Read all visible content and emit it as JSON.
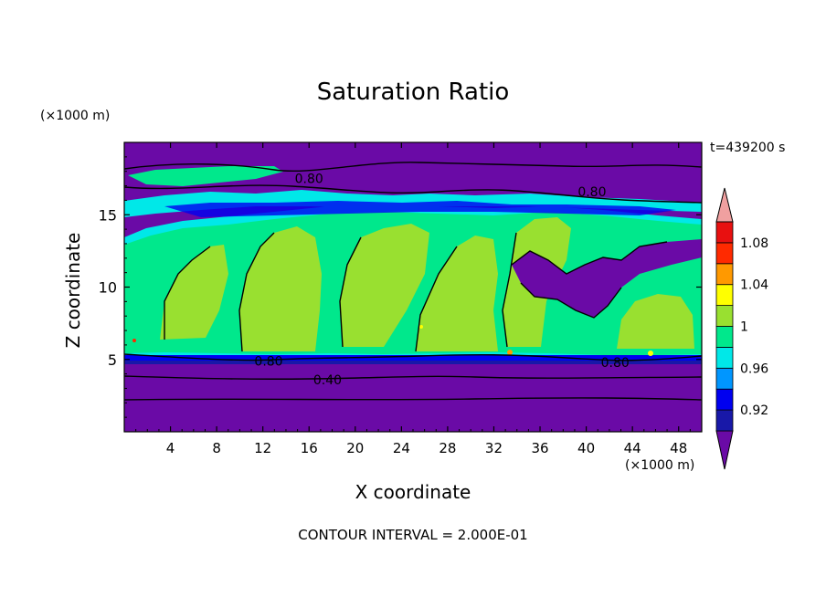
{
  "chart_data": {
    "type": "heatmap",
    "title": "Saturation Ratio",
    "xlabel": "X coordinate",
    "ylabel": "Z coordinate",
    "x_unit": "(×1000 m)",
    "y_unit": "(×1000 m)",
    "time_label": "t=439200 s",
    "footer": "CONTOUR INTERVAL = 2.000E-01",
    "xlim": [
      0,
      50
    ],
    "ylim": [
      0,
      20
    ],
    "x_ticks": [
      4,
      8,
      12,
      16,
      20,
      24,
      28,
      32,
      36,
      40,
      44,
      48
    ],
    "y_ticks": [
      5,
      10,
      15
    ],
    "colorbar": {
      "levels": [
        0.92,
        0.96,
        1,
        1.04,
        1.08
      ],
      "colors": [
        "#6a0aa6",
        "#1818a8",
        "#0000f0",
        "#0096ff",
        "#00e8e8",
        "#00e88c",
        "#99e030",
        "#ffff00",
        "#ff9900",
        "#ff2a00",
        "#e81010",
        "#f0a0a0"
      ]
    },
    "contour_labels": [
      {
        "text": "0.80",
        "x": 16,
        "z": 17.5
      },
      {
        "text": "0.80",
        "x": 40.5,
        "z": 16.6
      },
      {
        "text": "0.80",
        "x": 12.5,
        "z": 4.9
      },
      {
        "text": "0.80",
        "x": 42.5,
        "z": 4.8
      },
      {
        "text": "0.40",
        "x": 17.6,
        "z": 3.6
      }
    ]
  }
}
